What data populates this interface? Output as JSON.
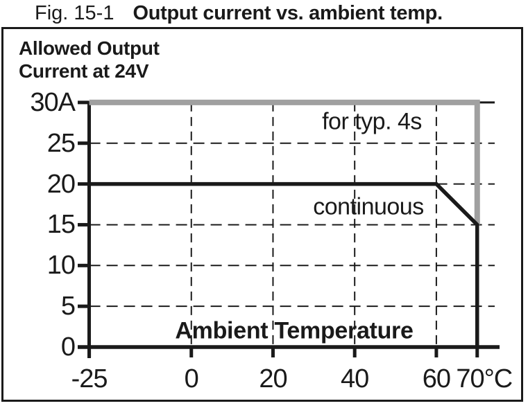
{
  "figure": {
    "label": "Fig. 15-1",
    "title": "Output current vs. ambient temp."
  },
  "chart_data": {
    "type": "line",
    "title_line1": "Allowed Output",
    "title_line2": "Current at 24V",
    "ylabel": "Allowed Output Current at 24V",
    "xlabel": "Ambient Temperature",
    "x_unit": "°C",
    "y_unit": "A",
    "xlim": [
      -25,
      70
    ],
    "ylim": [
      0,
      30
    ],
    "x_ticks": [
      {
        "value": -25,
        "label": "-25"
      },
      {
        "value": 0,
        "label": "0"
      },
      {
        "value": 20,
        "label": "20"
      },
      {
        "value": 40,
        "label": "40"
      },
      {
        "value": 60,
        "label": "60"
      },
      {
        "value": 70,
        "label": "70°C"
      }
    ],
    "y_ticks": [
      {
        "value": 30,
        "label": "30A"
      },
      {
        "value": 25,
        "label": "25"
      },
      {
        "value": 20,
        "label": "20"
      },
      {
        "value": 15,
        "label": "15"
      },
      {
        "value": 10,
        "label": "10"
      },
      {
        "value": 5,
        "label": "5"
      },
      {
        "value": 0,
        "label": "0"
      }
    ],
    "grid": {
      "style": "dashed",
      "x_values": [
        0,
        20,
        40,
        60
      ],
      "y_values": [
        5,
        10,
        15,
        20,
        25
      ],
      "solid_y_values": [
        30
      ]
    },
    "series": [
      {
        "name": "for typ. 4s",
        "color": "#a0a0a0",
        "stroke_width": 8,
        "points": [
          [
            -25,
            30
          ],
          [
            70,
            30
          ],
          [
            70,
            15
          ]
        ]
      },
      {
        "name": "continuous",
        "color": "#1a1a1a",
        "stroke_width": 5.5,
        "points": [
          [
            -25,
            20
          ],
          [
            60,
            20
          ],
          [
            70,
            15
          ],
          [
            70,
            0
          ]
        ]
      }
    ],
    "annotations": [
      {
        "text": "for typ. 4s"
      },
      {
        "text": "continuous"
      },
      {
        "text": "Ambient Temperature"
      }
    ],
    "colors": {
      "peak_line": "#a0a0a0",
      "continuous_line": "#1a1a1a",
      "grid": "#1a1a1a",
      "background": "#ffffff"
    },
    "legend_position": "inline-labels"
  }
}
